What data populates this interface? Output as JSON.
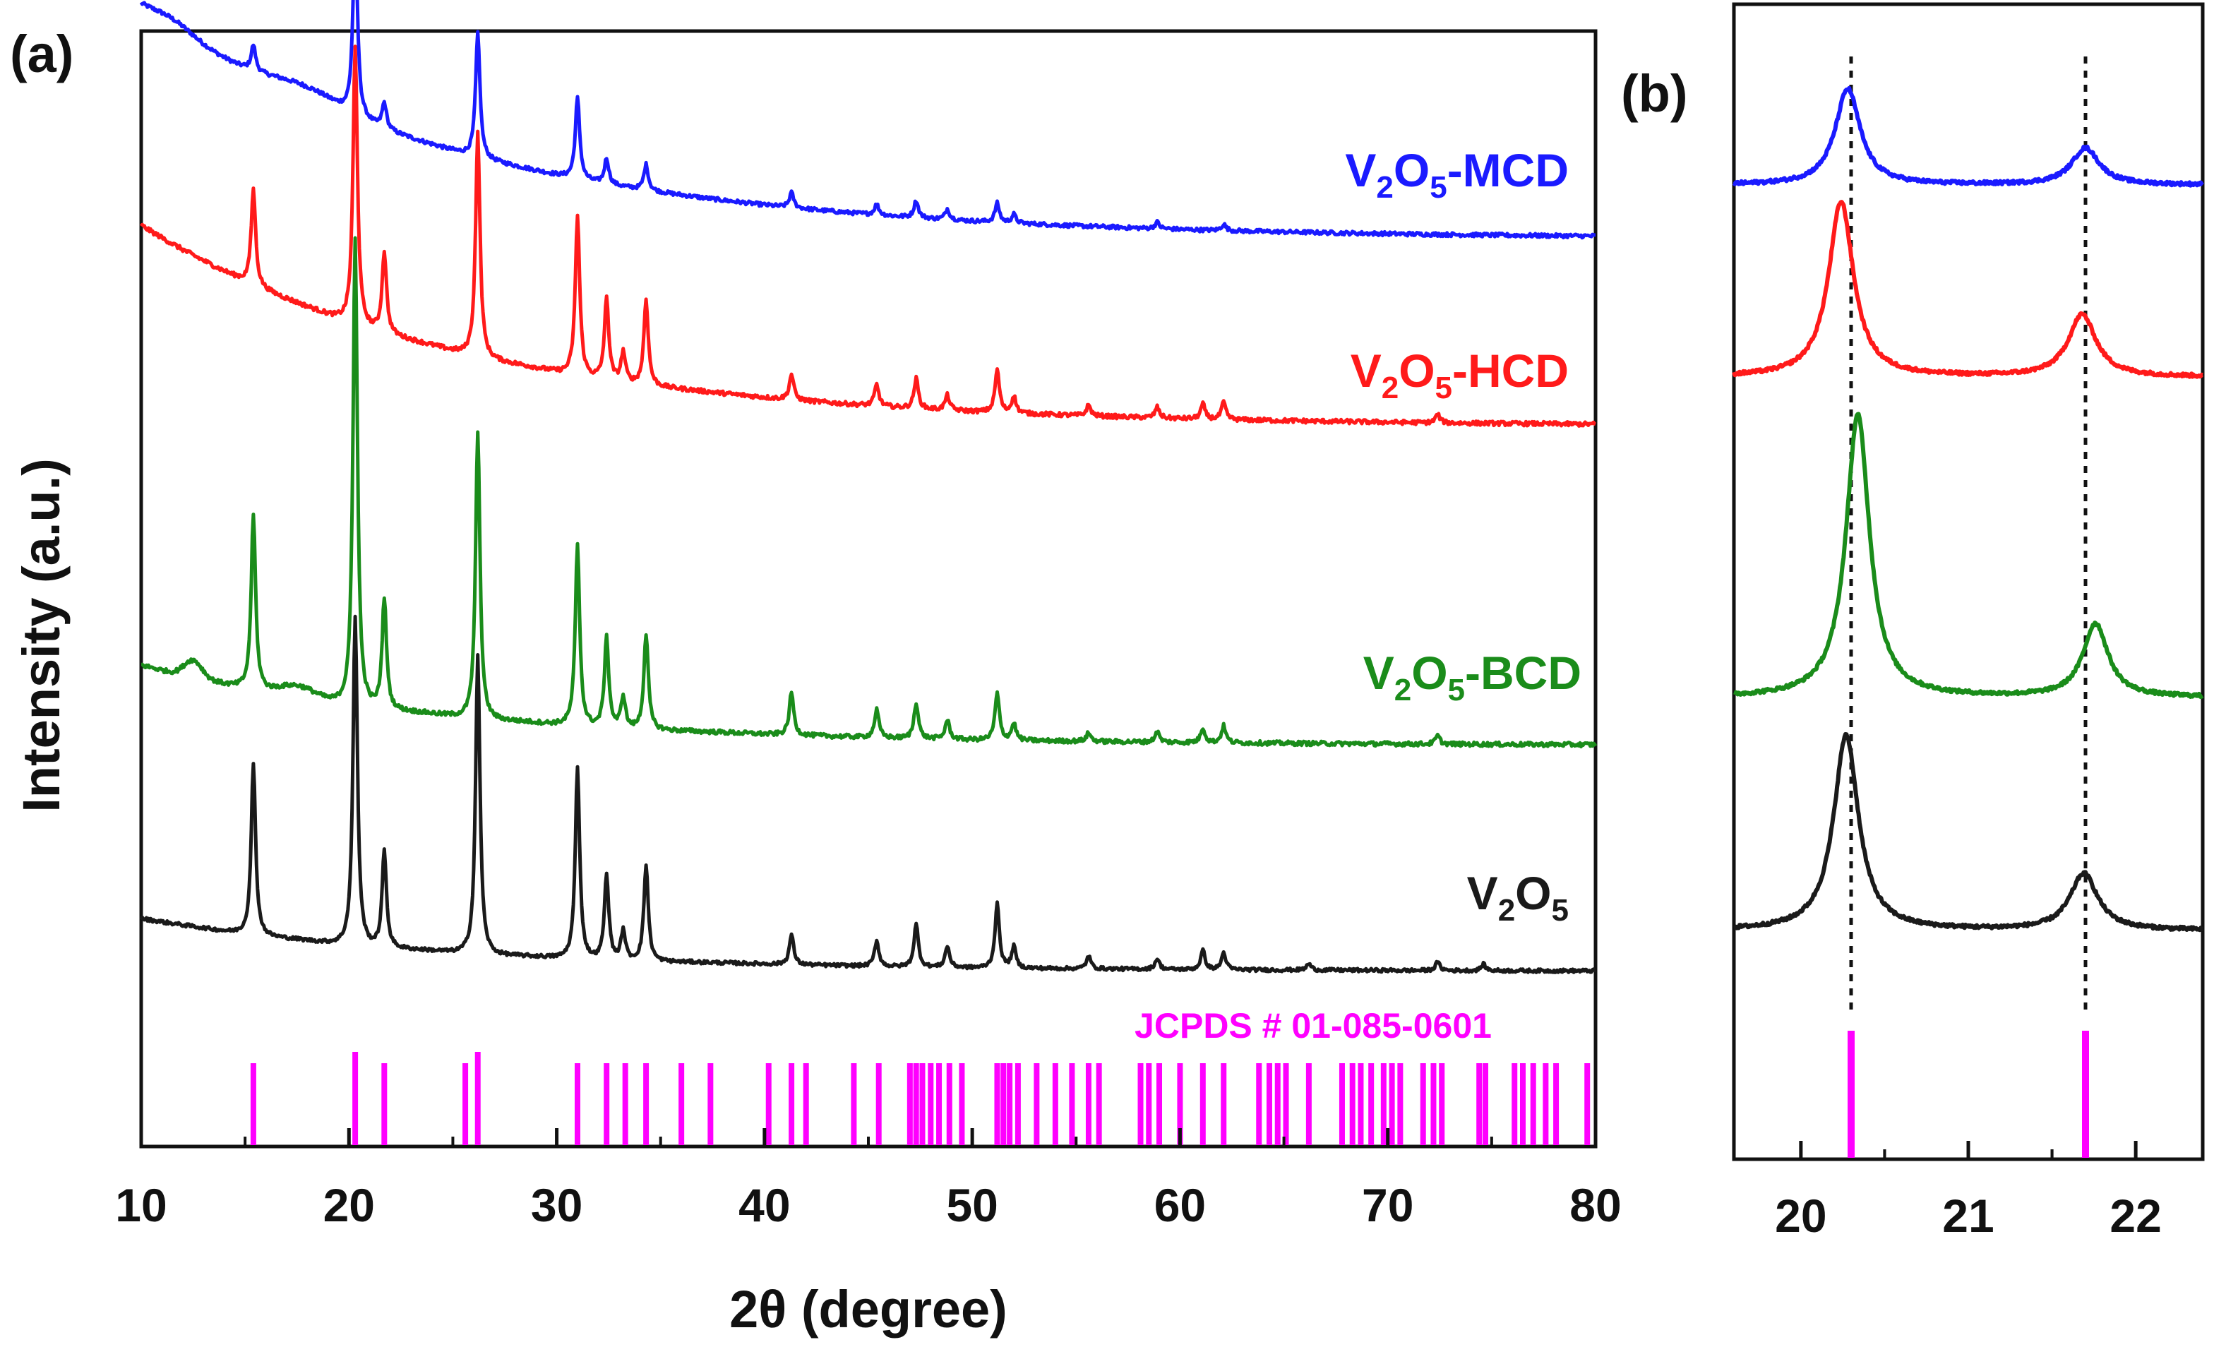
{
  "chart_data": [
    {
      "panel": "(a)",
      "type": "line",
      "xlabel": "2θ (degree)",
      "ylabel": "Intensity (a.u.)",
      "xlim": [
        10,
        80
      ],
      "x_ticks": [
        "10",
        "20",
        "30",
        "40",
        "50",
        "60",
        "70",
        "80"
      ],
      "series": [
        {
          "name": "V2O5-MCD",
          "label_parts": [
            "V",
            "2",
            "O",
            "5",
            "-MCD"
          ],
          "color": "#1a1aff",
          "baseline_start": 1.12,
          "baseline_end": 0.02,
          "noise": 0.018,
          "broad_humps": [
            {
              "center": 11.5,
              "height": 0.04,
              "width": 1.4
            },
            {
              "center": 18.0,
              "height": 0.06,
              "width": 2.4
            }
          ],
          "peaks": [
            [
              15.4,
              0.12
            ],
            [
              20.3,
              0.88
            ],
            [
              21.7,
              0.12
            ],
            [
              26.2,
              0.58
            ],
            [
              31.0,
              0.38
            ],
            [
              32.4,
              0.12
            ],
            [
              34.3,
              0.12
            ],
            [
              41.3,
              0.07
            ],
            [
              45.4,
              0.05
            ],
            [
              47.3,
              0.08
            ],
            [
              48.8,
              0.05
            ],
            [
              51.2,
              0.09
            ],
            [
              52.0,
              0.04
            ],
            [
              58.9,
              0.03
            ],
            [
              62.1,
              0.03
            ]
          ]
        },
        {
          "name": "V2O5-HCD",
          "label_parts": [
            "V",
            "2",
            "O",
            "5",
            "-HCD"
          ],
          "color": "#ff1a1a",
          "baseline_start": 0.95,
          "baseline_end": 0.0,
          "noise": 0.02,
          "broad_humps": [],
          "peaks": [
            [
              15.4,
              0.45
            ],
            [
              20.3,
              1.3
            ],
            [
              21.7,
              0.38
            ],
            [
              26.2,
              1.05
            ],
            [
              31.0,
              0.75
            ],
            [
              32.4,
              0.38
            ],
            [
              33.2,
              0.14
            ],
            [
              34.3,
              0.4
            ],
            [
              41.3,
              0.12
            ],
            [
              45.4,
              0.1
            ],
            [
              47.3,
              0.14
            ],
            [
              48.8,
              0.07
            ],
            [
              51.2,
              0.2
            ],
            [
              52.0,
              0.08
            ],
            [
              55.6,
              0.05
            ],
            [
              58.9,
              0.05
            ],
            [
              61.1,
              0.07
            ],
            [
              62.1,
              0.08
            ],
            [
              72.4,
              0.04
            ]
          ]
        },
        {
          "name": "V2O5-BCD",
          "label_parts": [
            "V",
            "2",
            "O",
            "5",
            "-BCD"
          ],
          "color": "#1a8c1a",
          "baseline_start": 0.38,
          "baseline_end": 0.0,
          "noise": 0.02,
          "broad_humps": [
            {
              "center": 12.5,
              "height": 0.08,
              "width": 0.6
            },
            {
              "center": 17.5,
              "height": 0.05,
              "width": 1.2
            }
          ],
          "peaks": [
            [
              15.4,
              0.82
            ],
            [
              20.3,
              2.2
            ],
            [
              21.7,
              0.52
            ],
            [
              26.2,
              1.35
            ],
            [
              31.0,
              0.85
            ],
            [
              32.4,
              0.42
            ],
            [
              33.2,
              0.15
            ],
            [
              34.3,
              0.45
            ],
            [
              41.3,
              0.2
            ],
            [
              45.4,
              0.13
            ],
            [
              47.3,
              0.17
            ],
            [
              48.8,
              0.09
            ],
            [
              51.2,
              0.22
            ],
            [
              52.0,
              0.08
            ],
            [
              55.6,
              0.04
            ],
            [
              58.9,
              0.05
            ],
            [
              61.1,
              0.07
            ],
            [
              62.1,
              0.08
            ],
            [
              72.4,
              0.04
            ]
          ]
        },
        {
          "name": "V2O5",
          "label_parts": [
            "V",
            "2",
            "O",
            "5",
            ""
          ],
          "color": "#1a1a1a",
          "baseline_start": 0.25,
          "baseline_end": 0.0,
          "noise": 0.016,
          "broad_humps": [],
          "peaks": [
            [
              15.4,
              0.8
            ],
            [
              20.3,
              1.55
            ],
            [
              21.7,
              0.45
            ],
            [
              26.2,
              1.4
            ],
            [
              31.0,
              0.9
            ],
            [
              32.4,
              0.4
            ],
            [
              33.2,
              0.14
            ],
            [
              34.3,
              0.45
            ],
            [
              41.3,
              0.14
            ],
            [
              45.4,
              0.12
            ],
            [
              47.3,
              0.2
            ],
            [
              48.8,
              0.1
            ],
            [
              51.2,
              0.3
            ],
            [
              52.0,
              0.1
            ],
            [
              55.6,
              0.06
            ],
            [
              58.9,
              0.05
            ],
            [
              61.1,
              0.09
            ],
            [
              62.1,
              0.08
            ],
            [
              66.2,
              0.03
            ],
            [
              72.4,
              0.04
            ],
            [
              74.6,
              0.03
            ]
          ]
        }
      ],
      "reference": {
        "label": "JCPDS # 01-085-0601",
        "color": "#ff00ff",
        "positions": [
          15.4,
          20.3,
          21.7,
          25.6,
          26.2,
          31.0,
          32.4,
          33.3,
          34.3,
          36.0,
          37.4,
          40.2,
          41.3,
          42.0,
          44.3,
          45.5,
          47.0,
          47.3,
          47.6,
          48.0,
          48.4,
          48.9,
          49.5,
          51.2,
          51.5,
          51.8,
          52.2,
          53.1,
          54.0,
          54.8,
          55.6,
          56.1,
          58.1,
          58.5,
          59.0,
          60.0,
          61.1,
          62.1,
          63.8,
          64.3,
          64.7,
          65.1,
          66.2,
          67.8,
          68.3,
          68.7,
          69.2,
          69.8,
          70.2,
          70.6,
          71.7,
          72.2,
          72.6,
          74.4,
          74.7,
          76.1,
          76.5,
          77.0,
          77.6,
          78.1,
          79.6
        ],
        "tall": [
          20.3,
          26.2
        ]
      }
    },
    {
      "panel": "(b)",
      "type": "line",
      "xlim": [
        19.6,
        22.4
      ],
      "x_ticks": [
        "20",
        "21",
        "22"
      ],
      "dashed_lines_at": [
        20.3,
        21.7
      ],
      "series": [
        {
          "name": "V2O5-MCD",
          "color": "#1a1aff",
          "peaks": [
            [
              20.28,
              0.34,
              0.09
            ],
            [
              21.7,
              0.13,
              0.1
            ]
          ],
          "noise": 0.012
        },
        {
          "name": "V2O5-HCD",
          "color": "#ff1a1a",
          "peaks": [
            [
              20.24,
              0.62,
              0.09
            ],
            [
              21.68,
              0.22,
              0.1
            ]
          ],
          "noise": 0.012
        },
        {
          "name": "V2O5-BCD",
          "color": "#1a8c1a",
          "peaks": [
            [
              20.34,
              1.0,
              0.085
            ],
            [
              21.76,
              0.26,
              0.09
            ]
          ],
          "noise": 0.012
        },
        {
          "name": "V2O5",
          "color": "#1a1a1a",
          "peaks": [
            [
              20.27,
              0.69,
              0.09
            ],
            [
              21.69,
              0.2,
              0.1
            ]
          ],
          "noise": 0.012
        }
      ],
      "reference_positions": [
        20.3,
        21.7
      ],
      "reference_color": "#ff00ff"
    }
  ]
}
